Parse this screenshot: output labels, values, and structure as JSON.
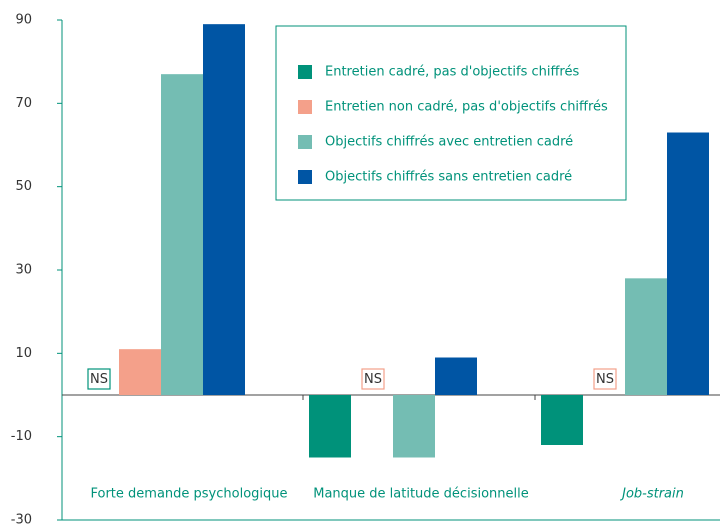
{
  "chart_data": {
    "type": "bar",
    "categories": [
      "Forte demande psychologique",
      "Manque de latitude décisionnelle",
      "Job-strain"
    ],
    "category_styles": [
      "normal",
      "normal",
      "italic"
    ],
    "series": [
      {
        "name": "Entretien cadré, pas d'objectifs chiffrés",
        "color": "#00927a",
        "values": [
          null,
          -15,
          -12
        ],
        "value_labels": [
          "NS",
          null,
          null
        ]
      },
      {
        "name": "Entretien non cadré, pas d'objectifs chiffrés",
        "color": "#f4a08a",
        "values": [
          11,
          null,
          null
        ],
        "value_labels": [
          null,
          "NS",
          "NS"
        ]
      },
      {
        "name": "Objectifs chiffrés avec entretien  cadré",
        "color": "#74bdb3",
        "values": [
          77,
          -15,
          28
        ]
      },
      {
        "name": "Objectifs chiffrés sans entretien cadré",
        "color": "#0055a4",
        "values": [
          89,
          9,
          63
        ]
      }
    ],
    "ylim": [
      -30,
      90
    ],
    "yticks": [
      90,
      70,
      50,
      30,
      10,
      -10,
      -30
    ],
    "legend": "top-right"
  }
}
